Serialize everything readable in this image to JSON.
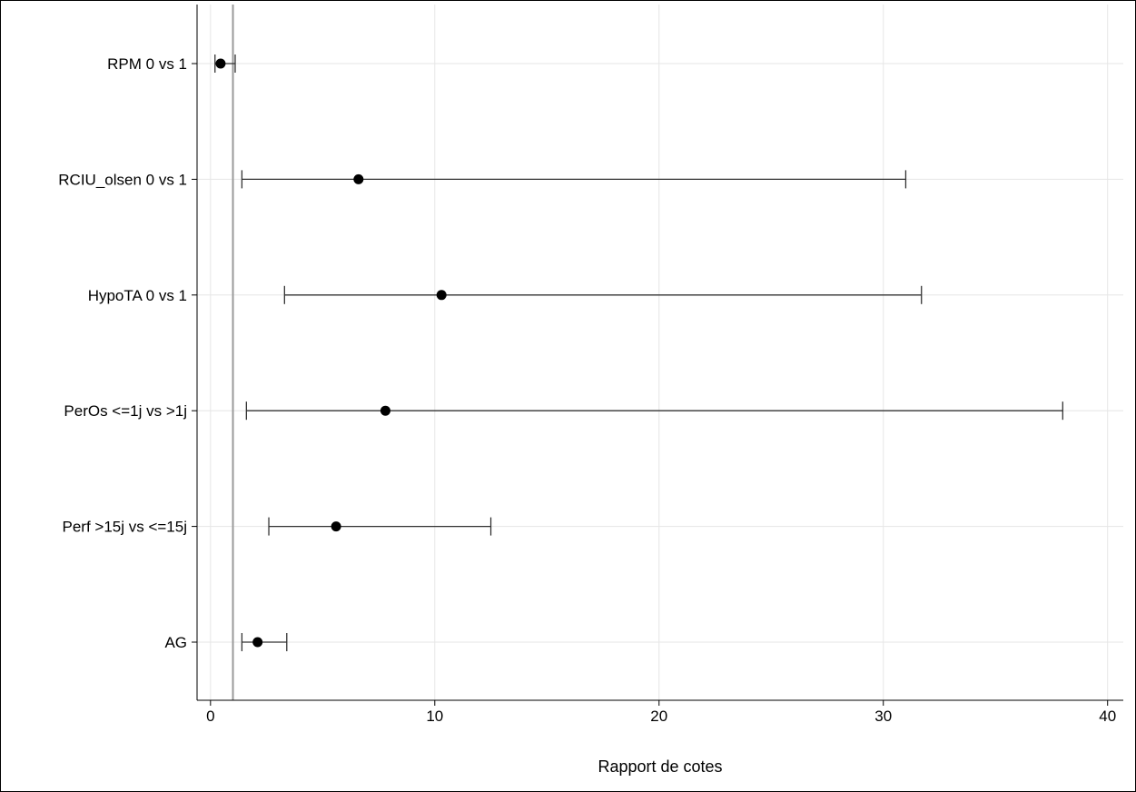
{
  "chart_data": {
    "type": "forest",
    "title": "",
    "xlabel": "Rapport de cotes",
    "ylabel": "",
    "xlim": [
      -0.6,
      40.7
    ],
    "xticks": [
      0,
      10,
      20,
      30,
      40
    ],
    "xtick_labels": [
      "0",
      "10",
      "20",
      "30",
      "40"
    ],
    "reference_line": 1,
    "grid": true,
    "legend": "none",
    "categories": [
      "RPM  0 vs 1",
      "RCIU_olsen 0 vs 1",
      "HypoTA 0 vs 1",
      "PerOs <=1j vs >1j",
      "Perf >15j vs <=15j",
      "AG"
    ],
    "estimates": [
      0.45,
      6.6,
      10.3,
      7.8,
      5.6,
      2.1
    ],
    "lower": [
      0.2,
      1.4,
      3.3,
      1.6,
      2.6,
      1.4
    ],
    "upper": [
      1.1,
      31.0,
      31.7,
      38.0,
      12.5,
      3.4
    ]
  },
  "colors": {
    "background": "#ffffff",
    "frame": "#000000",
    "grid": "#e6e6e6",
    "reference_line": "#9a9a9a",
    "axis": "#000000",
    "error_bar": "#333333",
    "marker": "#000000",
    "text": "#000000"
  }
}
